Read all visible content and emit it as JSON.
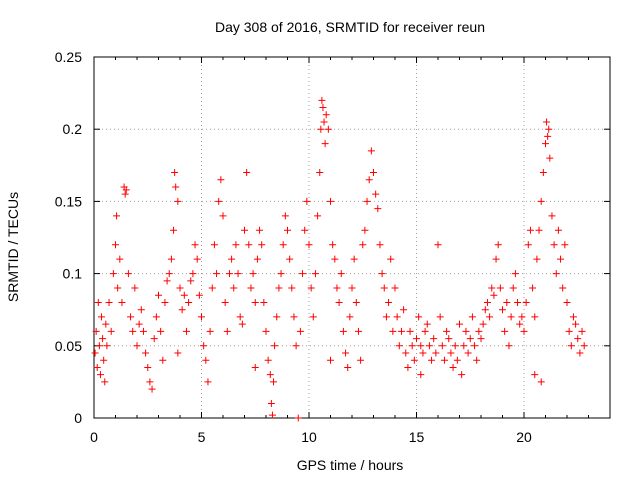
{
  "chart_data": {
    "type": "scatter",
    "title": "Day 308 of 2016, SRMTID for receiver reun",
    "xlabel": "GPS time / hours",
    "ylabel": "SRMTID / TECUs",
    "xlim": [
      0,
      24
    ],
    "ylim": [
      0,
      0.25
    ],
    "xticks": [
      0,
      5,
      10,
      15,
      20
    ],
    "xtick_labels": [
      "0",
      "5",
      "10",
      "15",
      "20"
    ],
    "yticks": [
      0,
      0.05,
      0.1,
      0.15,
      0.2,
      0.25
    ],
    "ytick_labels": [
      "0",
      "0.05",
      "0.1",
      "0.15",
      "0.2",
      "0.25"
    ],
    "grid": true,
    "marker": "+",
    "series": [
      {
        "name": "SRMTID",
        "color": "#ff0000",
        "points": [
          [
            0.05,
            0.045
          ],
          [
            0.1,
            0.06
          ],
          [
            0.15,
            0.035
          ],
          [
            0.2,
            0.08
          ],
          [
            0.25,
            0.05
          ],
          [
            0.3,
            0.03
          ],
          [
            0.35,
            0.07
          ],
          [
            0.4,
            0.055
          ],
          [
            0.45,
            0.04
          ],
          [
            0.5,
            0.025
          ],
          [
            0.55,
            0.065
          ],
          [
            0.6,
            0.05
          ],
          [
            0.7,
            0.08
          ],
          [
            0.8,
            0.06
          ],
          [
            0.9,
            0.1
          ],
          [
            1.0,
            0.12
          ],
          [
            1.05,
            0.14
          ],
          [
            1.1,
            0.09
          ],
          [
            1.2,
            0.11
          ],
          [
            1.3,
            0.08
          ],
          [
            1.4,
            0.16
          ],
          [
            1.45,
            0.155
          ],
          [
            1.5,
            0.158
          ],
          [
            1.6,
            0.1
          ],
          [
            1.7,
            0.07
          ],
          [
            1.8,
            0.06
          ],
          [
            1.9,
            0.09
          ],
          [
            2.0,
            0.05
          ],
          [
            2.1,
            0.065
          ],
          [
            2.2,
            0.075
          ],
          [
            2.3,
            0.06
          ],
          [
            2.4,
            0.045
          ],
          [
            2.5,
            0.035
          ],
          [
            2.6,
            0.025
          ],
          [
            2.7,
            0.02
          ],
          [
            2.8,
            0.055
          ],
          [
            2.9,
            0.07
          ],
          [
            3.0,
            0.085
          ],
          [
            3.1,
            0.06
          ],
          [
            3.2,
            0.04
          ],
          [
            3.3,
            0.08
          ],
          [
            3.4,
            0.095
          ],
          [
            3.5,
            0.1
          ],
          [
            3.6,
            0.11
          ],
          [
            3.7,
            0.13
          ],
          [
            3.75,
            0.17
          ],
          [
            3.8,
            0.16
          ],
          [
            3.9,
            0.15
          ],
          [
            4.0,
            0.09
          ],
          [
            4.1,
            0.075
          ],
          [
            4.2,
            0.085
          ],
          [
            4.3,
            0.06
          ],
          [
            4.4,
            0.08
          ],
          [
            4.5,
            0.095
          ],
          [
            4.6,
            0.1
          ],
          [
            4.7,
            0.12
          ],
          [
            4.8,
            0.11
          ],
          [
            4.9,
            0.085
          ],
          [
            5.0,
            0.07
          ],
          [
            5.1,
            0.05
          ],
          [
            5.2,
            0.04
          ],
          [
            5.3,
            0.025
          ],
          [
            5.4,
            0.06
          ],
          [
            5.5,
            0.09
          ],
          [
            5.6,
            0.12
          ],
          [
            5.7,
            0.1
          ],
          [
            5.8,
            0.15
          ],
          [
            5.9,
            0.165
          ],
          [
            6.0,
            0.14
          ],
          [
            6.1,
            0.08
          ],
          [
            6.2,
            0.06
          ],
          [
            6.3,
            0.1
          ],
          [
            6.4,
            0.11
          ],
          [
            6.5,
            0.09
          ],
          [
            6.6,
            0.12
          ],
          [
            6.7,
            0.1
          ],
          [
            6.8,
            0.07
          ],
          [
            6.9,
            0.065
          ],
          [
            7.0,
            0.13
          ],
          [
            7.1,
            0.17
          ],
          [
            7.2,
            0.12
          ],
          [
            7.3,
            0.09
          ],
          [
            7.4,
            0.1
          ],
          [
            7.5,
            0.08
          ],
          [
            7.6,
            0.11
          ],
          [
            7.7,
            0.13
          ],
          [
            7.8,
            0.12
          ],
          [
            7.9,
            0.08
          ],
          [
            8.0,
            0.06
          ],
          [
            8.1,
            0.04
          ],
          [
            8.2,
            0.03
          ],
          [
            8.25,
            0.01
          ],
          [
            8.3,
            0.002
          ],
          [
            8.35,
            0.025
          ],
          [
            8.4,
            0.05
          ],
          [
            8.5,
            0.07
          ],
          [
            8.6,
            0.09
          ],
          [
            8.7,
            0.1
          ],
          [
            8.8,
            0.12
          ],
          [
            8.9,
            0.14
          ],
          [
            9.0,
            0.13
          ],
          [
            9.1,
            0.11
          ],
          [
            9.2,
            0.09
          ],
          [
            9.3,
            0.07
          ],
          [
            9.4,
            0.05
          ],
          [
            9.5,
            0.0
          ],
          [
            9.6,
            0.06
          ],
          [
            9.7,
            0.1
          ],
          [
            9.8,
            0.13
          ],
          [
            9.9,
            0.15
          ],
          [
            10.0,
            0.12
          ],
          [
            10.1,
            0.09
          ],
          [
            10.2,
            0.07
          ],
          [
            10.3,
            0.1
          ],
          [
            10.4,
            0.14
          ],
          [
            10.5,
            0.17
          ],
          [
            10.55,
            0.2
          ],
          [
            10.6,
            0.22
          ],
          [
            10.65,
            0.215
          ],
          [
            10.7,
            0.205
          ],
          [
            10.75,
            0.19
          ],
          [
            10.8,
            0.21
          ],
          [
            10.9,
            0.2
          ],
          [
            11.0,
            0.15
          ],
          [
            11.1,
            0.12
          ],
          [
            11.2,
            0.11
          ],
          [
            11.3,
            0.09
          ],
          [
            11.4,
            0.08
          ],
          [
            11.5,
            0.1
          ],
          [
            11.6,
            0.06
          ],
          [
            11.7,
            0.045
          ],
          [
            11.8,
            0.035
          ],
          [
            11.9,
            0.07
          ],
          [
            12.0,
            0.09
          ],
          [
            12.1,
            0.11
          ],
          [
            12.2,
            0.08
          ],
          [
            12.3,
            0.06
          ],
          [
            12.4,
            0.04
          ],
          [
            12.5,
            0.12
          ],
          [
            12.6,
            0.13
          ],
          [
            12.7,
            0.15
          ],
          [
            12.8,
            0.165
          ],
          [
            12.9,
            0.185
          ],
          [
            13.0,
            0.17
          ],
          [
            13.1,
            0.155
          ],
          [
            13.2,
            0.145
          ],
          [
            13.3,
            0.12
          ],
          [
            13.4,
            0.1
          ],
          [
            13.5,
            0.09
          ],
          [
            13.6,
            0.07
          ],
          [
            13.7,
            0.08
          ],
          [
            13.8,
            0.11
          ],
          [
            13.9,
            0.06
          ],
          [
            14.0,
            0.09
          ],
          [
            14.1,
            0.07
          ],
          [
            14.2,
            0.05
          ],
          [
            14.3,
            0.06
          ],
          [
            14.4,
            0.075
          ],
          [
            14.5,
            0.045
          ],
          [
            14.6,
            0.035
          ],
          [
            14.7,
            0.06
          ],
          [
            14.8,
            0.05
          ],
          [
            14.9,
            0.04
          ],
          [
            15.0,
            0.055
          ],
          [
            15.1,
            0.07
          ],
          [
            15.2,
            0.05
          ],
          [
            15.3,
            0.045
          ],
          [
            15.4,
            0.06
          ],
          [
            15.5,
            0.065
          ],
          [
            15.6,
            0.05
          ],
          [
            15.7,
            0.04
          ],
          [
            15.8,
            0.055
          ],
          [
            15.9,
            0.045
          ],
          [
            16.0,
            0.12
          ],
          [
            16.1,
            0.07
          ],
          [
            16.2,
            0.05
          ],
          [
            16.3,
            0.04
          ],
          [
            16.4,
            0.06
          ],
          [
            16.5,
            0.055
          ],
          [
            16.6,
            0.045
          ],
          [
            16.7,
            0.035
          ],
          [
            16.8,
            0.05
          ],
          [
            16.9,
            0.04
          ],
          [
            17.0,
            0.065
          ],
          [
            17.1,
            0.03
          ],
          [
            17.2,
            0.05
          ],
          [
            17.3,
            0.06
          ],
          [
            17.4,
            0.045
          ],
          [
            17.5,
            0.055
          ],
          [
            17.6,
            0.07
          ],
          [
            17.7,
            0.05
          ],
          [
            17.8,
            0.04
          ],
          [
            17.9,
            0.06
          ],
          [
            18.0,
            0.055
          ],
          [
            18.1,
            0.065
          ],
          [
            18.2,
            0.075
          ],
          [
            18.3,
            0.08
          ],
          [
            18.4,
            0.07
          ],
          [
            18.5,
            0.09
          ],
          [
            18.6,
            0.085
          ],
          [
            18.7,
            0.11
          ],
          [
            18.8,
            0.12
          ],
          [
            18.9,
            0.09
          ],
          [
            19.0,
            0.075
          ],
          [
            19.1,
            0.06
          ],
          [
            19.2,
            0.08
          ],
          [
            19.3,
            0.05
          ],
          [
            19.4,
            0.07
          ],
          [
            19.5,
            0.09
          ],
          [
            19.6,
            0.1
          ],
          [
            19.7,
            0.08
          ],
          [
            19.8,
            0.065
          ],
          [
            19.9,
            0.07
          ],
          [
            20.0,
            0.06
          ],
          [
            20.1,
            0.08
          ],
          [
            20.2,
            0.12
          ],
          [
            20.3,
            0.13
          ],
          [
            20.4,
            0.09
          ],
          [
            20.5,
            0.07
          ],
          [
            20.6,
            0.11
          ],
          [
            20.7,
            0.13
          ],
          [
            20.8,
            0.15
          ],
          [
            20.9,
            0.17
          ],
          [
            21.0,
            0.19
          ],
          [
            21.05,
            0.205
          ],
          [
            21.1,
            0.195
          ],
          [
            21.15,
            0.2
          ],
          [
            21.2,
            0.18
          ],
          [
            21.3,
            0.14
          ],
          [
            21.4,
            0.12
          ],
          [
            21.5,
            0.1
          ],
          [
            21.6,
            0.13
          ],
          [
            21.7,
            0.11
          ],
          [
            21.8,
            0.09
          ],
          [
            21.9,
            0.12
          ],
          [
            22.0,
            0.08
          ],
          [
            22.1,
            0.06
          ],
          [
            22.2,
            0.05
          ],
          [
            22.3,
            0.07
          ],
          [
            22.4,
            0.065
          ],
          [
            22.5,
            0.055
          ],
          [
            22.6,
            0.045
          ],
          [
            22.7,
            0.06
          ],
          [
            22.8,
            0.05
          ],
          [
            20.5,
            0.03
          ],
          [
            20.8,
            0.025
          ],
          [
            3.9,
            0.045
          ],
          [
            7.5,
            0.035
          ],
          [
            11.0,
            0.04
          ],
          [
            15.2,
            0.03
          ]
        ]
      }
    ]
  }
}
